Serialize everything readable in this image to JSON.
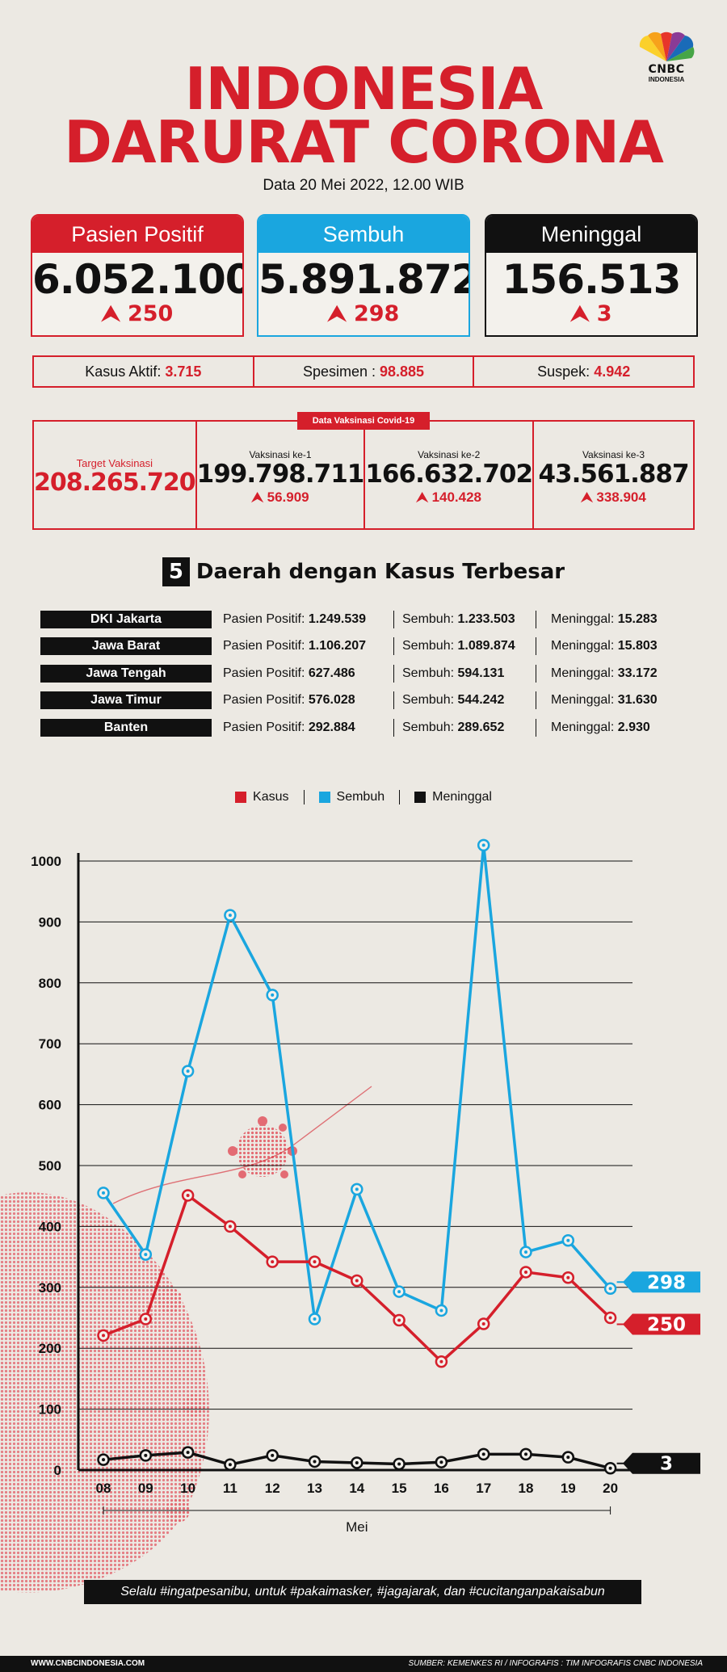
{
  "brand": {
    "logo_text": "CNBC",
    "logo_sub": "INDONESIA"
  },
  "header": {
    "title_line1": "INDONESIA",
    "title_line2": "DARURAT CORONA",
    "subtitle": "Data 20 Mei 2022, 12.00 WIB"
  },
  "stats": [
    {
      "label": "Pasien Positif",
      "value": "6.052.100",
      "delta": "250"
    },
    {
      "label": "Sembuh",
      "value": "5.891.872",
      "delta": "298"
    },
    {
      "label": "Meninggal",
      "value": "156.513",
      "delta": "3"
    }
  ],
  "info": {
    "aktif_label": "Kasus Aktif:",
    "aktif_value": "3.715",
    "spesimen_label": "Spesimen :",
    "spesimen_value": "98.885",
    "suspek_label": "Suspek:",
    "suspek_value": "4.942"
  },
  "vaccination": {
    "tag": "Data Vaksinasi Covid-19",
    "target_label": "Target Vaksinasi",
    "target_value": "208.265.720",
    "doses": [
      {
        "label": "Vaksinasi ke-1",
        "value": "199.798.711",
        "delta": "56.909"
      },
      {
        "label": "Vaksinasi ke-2",
        "value": "166.632.702",
        "delta": "140.428"
      },
      {
        "label": "Vaksinasi ke-3",
        "value": "43.561.887",
        "delta": "338.904"
      }
    ]
  },
  "regions": {
    "number": "5",
    "title": "Daerah dengan Kasus Terbesar",
    "pos_label": "Pasien Positif:",
    "sem_label": "Sembuh:",
    "men_label": "Meninggal:",
    "rows": [
      {
        "name": "DKI Jakarta",
        "positif": "1.249.539",
        "sembuh": "1.233.503",
        "meninggal": "15.283"
      },
      {
        "name": "Jawa Barat",
        "positif": "1.106.207",
        "sembuh": "1.089.874",
        "meninggal": "15.803"
      },
      {
        "name": "Jawa Tengah",
        "positif": "627.486",
        "sembuh": "594.131",
        "meninggal": "33.172"
      },
      {
        "name": "Jawa Timur",
        "positif": "576.028",
        "sembuh": "544.242",
        "meninggal": "31.630"
      },
      {
        "name": "Banten",
        "positif": "292.884",
        "sembuh": "289.652",
        "meninggal": "2.930"
      }
    ]
  },
  "colors": {
    "red": "#d51f2b",
    "blue": "#1aa6df",
    "black": "#111111"
  },
  "chart_data": {
    "type": "line",
    "xlabel": "Mei",
    "ylabel": "",
    "ylim": [
      0,
      1000
    ],
    "yticks": [
      0,
      100,
      200,
      300,
      400,
      500,
      600,
      700,
      800,
      900,
      1000
    ],
    "grid": true,
    "legend_position": "top-center",
    "x": [
      "08",
      "09",
      "10",
      "11",
      "12",
      "13",
      "14",
      "15",
      "16",
      "17",
      "18",
      "19",
      "20"
    ],
    "series": [
      {
        "name": "Kasus",
        "color": "#d51f2b",
        "values": [
          221,
          248,
          451,
          400,
          342,
          342,
          311,
          246,
          178,
          240,
          325,
          316,
          250
        ],
        "end_label": "250"
      },
      {
        "name": "Sembuh",
        "color": "#1aa6df",
        "values": [
          455,
          354,
          655,
          911,
          780,
          248,
          461,
          293,
          262,
          1026,
          358,
          377,
          298
        ],
        "end_label": "298"
      },
      {
        "name": "Meninggal",
        "color": "#111111",
        "values": [
          17,
          24,
          29,
          9,
          24,
          14,
          12,
          10,
          13,
          26,
          26,
          21,
          3
        ],
        "end_label": "3"
      }
    ]
  },
  "footer": {
    "slogan": "Selalu #ingatpesanibu, untuk #pakaimasker, #jagajarak, dan #cucitanganpakaisabun",
    "website": "WWW.CNBCINDONESIA.COM",
    "source": "SUMBER: KEMENKES RI / INFOGRAFIS : TIM INFOGRAFIS CNBC INDONESIA"
  }
}
